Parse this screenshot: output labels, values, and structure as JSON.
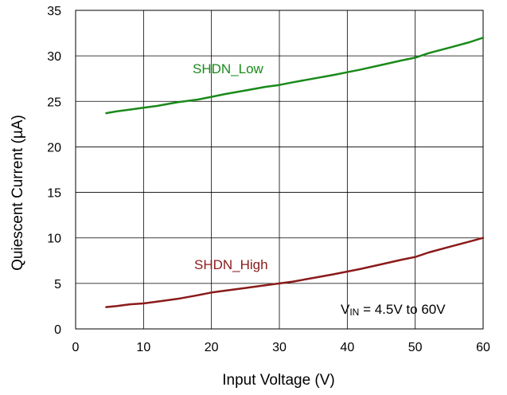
{
  "chart_data": {
    "type": "line",
    "xlabel": "Input Voltage (V)",
    "ylabel": "Quiescent Current (µA)",
    "xlim": [
      0,
      60
    ],
    "ylim": [
      0,
      35
    ],
    "x_ticks": [
      "0",
      "10",
      "20",
      "30",
      "40",
      "50",
      "60"
    ],
    "y_ticks": [
      "0",
      "5",
      "10",
      "15",
      "20",
      "25",
      "30",
      "35"
    ],
    "grid": true,
    "legend": "none",
    "annotation": {
      "main": "V",
      "sub": "IN",
      "rest": " = 4.5V to 60V"
    },
    "series": [
      {
        "name": "SHDN_Low",
        "color": "#1a8a1a",
        "x": [
          4.5,
          6,
          8,
          10,
          12,
          15,
          18,
          20,
          22,
          25,
          28,
          30,
          32,
          35,
          38,
          40,
          42,
          45,
          48,
          50,
          52,
          55,
          58,
          60
        ],
        "y": [
          23.7,
          23.9,
          24.1,
          24.3,
          24.5,
          24.9,
          25.2,
          25.5,
          25.8,
          26.2,
          26.6,
          26.8,
          27.1,
          27.5,
          27.9,
          28.2,
          28.5,
          29.0,
          29.5,
          29.8,
          30.3,
          30.9,
          31.5,
          32.0
        ]
      },
      {
        "name": "SHDN_High",
        "color": "#8b1a1a",
        "x": [
          4.5,
          6,
          8,
          10,
          12,
          15,
          18,
          20,
          22,
          25,
          28,
          30,
          32,
          35,
          38,
          40,
          42,
          45,
          48,
          50,
          52,
          55,
          58,
          60
        ],
        "y": [
          2.4,
          2.5,
          2.7,
          2.8,
          3.0,
          3.3,
          3.7,
          4.0,
          4.2,
          4.5,
          4.8,
          5.0,
          5.2,
          5.6,
          6.0,
          6.3,
          6.6,
          7.1,
          7.6,
          7.9,
          8.4,
          9.0,
          9.6,
          10.0
        ]
      }
    ]
  }
}
